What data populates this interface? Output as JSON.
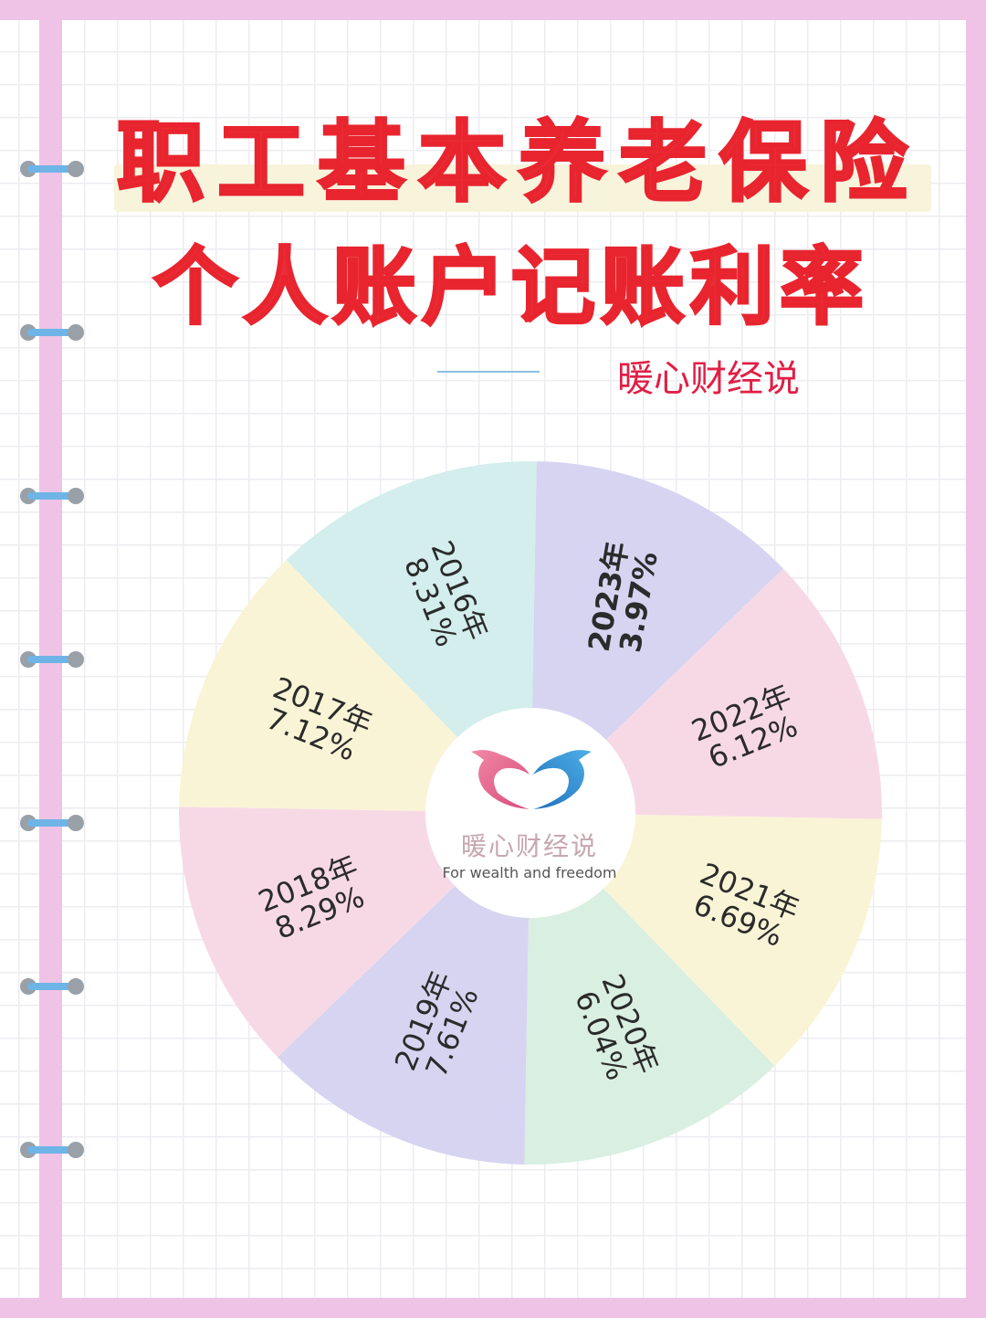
{
  "title": {
    "line1": "职工基本养老保险",
    "line2": "个人账户记账利率"
  },
  "brand": "暖心财经说",
  "logo": {
    "name": "暖心财经说",
    "tagline": "For wealth and freedom",
    "icon": "heart-birds-logo"
  },
  "colors": {
    "title": "#ea2d36",
    "brand": "#e01f45",
    "border": "#eec3e6",
    "ring": "#6fb4e6"
  },
  "chart_data": {
    "type": "pie",
    "title": "职工基本养老保险个人账户记账利率",
    "note": "equal-size segments, each labelled with year and rate",
    "categories": [
      "2023年",
      "2022年",
      "2021年",
      "2020年",
      "2019年",
      "2018年",
      "2017年",
      "2016年"
    ],
    "labels": [
      "3.97%",
      "6.12%",
      "6.69%",
      "6.04%",
      "7.61%",
      "8.29%",
      "7.12%",
      "8.31%"
    ],
    "values": [
      3.97,
      6.12,
      6.69,
      6.04,
      7.61,
      8.29,
      7.12,
      8.31
    ],
    "segment_colors": [
      "#d6d4f1",
      "#f7d9e6",
      "#faf4d7",
      "#d9efe1",
      "#d6d4f1",
      "#f7d9e6",
      "#faf4d7",
      "#d3eeec"
    ],
    "order": "clockwise from top"
  }
}
